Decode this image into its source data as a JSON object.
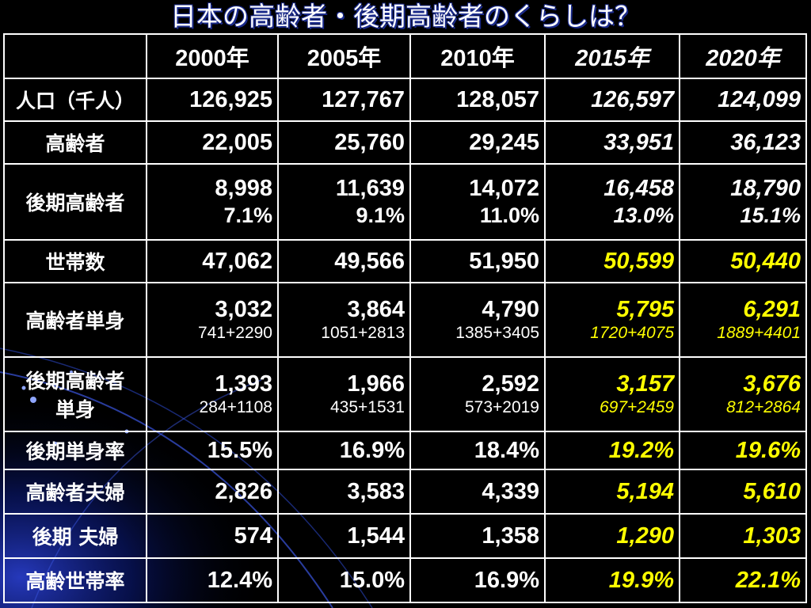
{
  "title": "日本の高齢者・後期高齢者のくらしは？",
  "header": {
    "corner": "",
    "years": [
      "2000年",
      "2005年",
      "2010年",
      "2015年",
      "2020年"
    ]
  },
  "rows": [
    {
      "label": "人口（千人）",
      "cells": [
        {
          "main": "126,925"
        },
        {
          "main": "127,767"
        },
        {
          "main": "128,057"
        },
        {
          "main": "126,597"
        },
        {
          "main": "124,099"
        }
      ]
    },
    {
      "label": "高齢者",
      "cells": [
        {
          "main": "22,005"
        },
        {
          "main": "25,760"
        },
        {
          "main": "29,245"
        },
        {
          "main": "33,951"
        },
        {
          "main": "36,123"
        }
      ]
    },
    {
      "label": "後期高齢者",
      "cells": [
        {
          "main": "8,998",
          "sub": "7.1%"
        },
        {
          "main": "11,639",
          "sub": "9.1%"
        },
        {
          "main": "14,072",
          "sub": "11.0%"
        },
        {
          "main": "16,458",
          "sub": "13.0%"
        },
        {
          "main": "18,790",
          "sub": "15.1%"
        }
      ]
    },
    {
      "label": "世帯数",
      "cells": [
        {
          "main": "47,062"
        },
        {
          "main": "49,566"
        },
        {
          "main": "51,950"
        },
        {
          "main": "50,599"
        },
        {
          "main": "50,440"
        }
      ]
    },
    {
      "label": "高齢者単身",
      "cells": [
        {
          "main": "3,032",
          "sub": "741+2290"
        },
        {
          "main": "3,864",
          "sub": "1051+2813"
        },
        {
          "main": "4,790",
          "sub": "1385+3405"
        },
        {
          "main": "5,795",
          "sub": "1720+4075"
        },
        {
          "main": "6,291",
          "sub": "1889+4401"
        }
      ]
    },
    {
      "label": "後期高齢者",
      "label2": "単身",
      "cells": [
        {
          "main": "1,393",
          "sub": "284+1108"
        },
        {
          "main": "1,966",
          "sub": "435+1531"
        },
        {
          "main": "2,592",
          "sub": "573+2019"
        },
        {
          "main": "3,157",
          "sub": "697+2459"
        },
        {
          "main": "3,676",
          "sub": "812+2864"
        }
      ]
    },
    {
      "label": "後期単身率",
      "cells": [
        {
          "main": "15.5%"
        },
        {
          "main": "16.9%"
        },
        {
          "main": "18.4%"
        },
        {
          "main": "19.2%"
        },
        {
          "main": "19.6%"
        }
      ]
    },
    {
      "label": "高齢者夫婦",
      "cells": [
        {
          "main": "2,826"
        },
        {
          "main": "3,583"
        },
        {
          "main": "4,339"
        },
        {
          "main": "5,194"
        },
        {
          "main": "5,610"
        }
      ]
    },
    {
      "label": "後期 夫婦",
      "cells": [
        {
          "main": "574"
        },
        {
          "main": "1,544"
        },
        {
          "main": "1,358"
        },
        {
          "main": "1,290"
        },
        {
          "main": "1,303"
        }
      ]
    },
    {
      "label": "高齢世帯率",
      "cells": [
        {
          "main": "12.4%"
        },
        {
          "main": "15.0%"
        },
        {
          "main": "16.9%"
        },
        {
          "main": "19.9%"
        },
        {
          "main": "22.1%"
        }
      ]
    }
  ],
  "colors": {
    "background": "#000000",
    "text": "#ffffff",
    "highlight": "#ffff00",
    "title_shadow": "#1a2a8a",
    "deco_blue": "#0b1a7a"
  }
}
